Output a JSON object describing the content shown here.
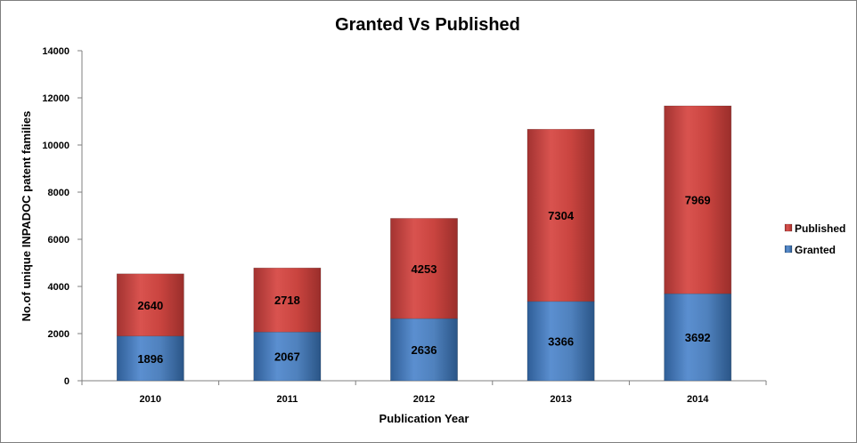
{
  "chart_data": {
    "type": "bar",
    "stacked": true,
    "title": "Granted Vs Published",
    "xlabel": "Publication Year",
    "ylabel": "No.of unique INPADOC patent families",
    "categories": [
      "2010",
      "2011",
      "2012",
      "2013",
      "2014"
    ],
    "series": [
      {
        "name": "Granted",
        "values": [
          1896,
          2067,
          2636,
          3366,
          3692
        ],
        "color": "#4f81bd"
      },
      {
        "name": "Published",
        "values": [
          2640,
          2718,
          4253,
          7304,
          7969
        ],
        "color": "#c0504d"
      }
    ],
    "ylim": [
      0,
      14000
    ],
    "yticks": [
      0,
      2000,
      4000,
      6000,
      8000,
      10000,
      12000,
      14000
    ],
    "legend_position": "right",
    "legend_order": [
      "Published",
      "Granted"
    ],
    "grid": false
  }
}
